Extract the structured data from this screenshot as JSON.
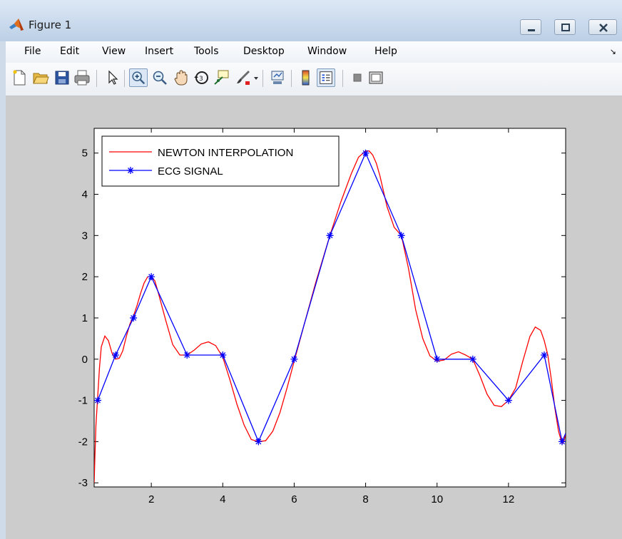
{
  "window": {
    "title": "Figure 1"
  },
  "menu": {
    "items": [
      "File",
      "Edit",
      "View",
      "Insert",
      "Tools",
      "Desktop",
      "Window",
      "Help"
    ]
  },
  "toolbar": {
    "buttons": [
      "new-figure",
      "open-file",
      "save-figure",
      "print-figure",
      "edit-plot",
      "zoom-in",
      "zoom-out",
      "pan",
      "rotate-3d",
      "data-cursor",
      "brush",
      "link-plot",
      "insert-colorbar",
      "insert-legend",
      "hide-plot-tools",
      "show-plot-tools"
    ]
  },
  "colors": {
    "interpolation": "#ff0000",
    "signal": "#0000ff",
    "figure_bg": "#cccccc"
  },
  "chart_data": {
    "type": "line",
    "xlim": [
      0.4,
      13.6
    ],
    "ylim": [
      -3.1,
      5.6
    ],
    "xticks": [
      2,
      4,
      6,
      8,
      10,
      12
    ],
    "yticks": [
      -3,
      -2,
      -1,
      0,
      1,
      2,
      3,
      4,
      5
    ],
    "grid": false,
    "legend_position": "top-left",
    "series": [
      {
        "name": "NEWTON INTERPOLATION",
        "style": "line",
        "x": [
          0.4,
          0.42,
          0.45,
          0.5,
          0.55,
          0.6,
          0.7,
          0.8,
          0.9,
          1.0,
          1.1,
          1.2,
          1.3,
          1.4,
          1.5,
          1.6,
          1.7,
          1.8,
          1.9,
          2.0,
          2.1,
          2.2,
          2.4,
          2.6,
          2.8,
          3.0,
          3.2,
          3.4,
          3.6,
          3.8,
          4.0,
          4.2,
          4.4,
          4.6,
          4.8,
          5.0,
          5.2,
          5.4,
          5.6,
          5.8,
          6.0,
          6.3,
          6.6,
          7.0,
          7.3,
          7.6,
          7.8,
          8.0,
          8.1,
          8.2,
          8.3,
          8.4,
          8.6,
          8.8,
          9.0,
          9.2,
          9.4,
          9.6,
          9.8,
          10.0,
          10.2,
          10.4,
          10.6,
          10.8,
          11.0,
          11.2,
          11.4,
          11.6,
          11.8,
          12.0,
          12.2,
          12.4,
          12.6,
          12.75,
          12.9,
          13.0,
          13.1,
          13.2,
          13.3,
          13.4,
          13.5,
          13.55,
          13.6
        ],
        "y": [
          -3.0,
          -2.4,
          -1.6,
          -0.9,
          -0.2,
          0.3,
          0.56,
          0.45,
          0.15,
          0.0,
          0.02,
          0.2,
          0.55,
          0.85,
          1.05,
          1.3,
          1.6,
          1.85,
          2.0,
          2.0,
          1.9,
          1.6,
          0.95,
          0.35,
          0.1,
          0.1,
          0.22,
          0.37,
          0.42,
          0.33,
          0.05,
          -0.5,
          -1.1,
          -1.6,
          -1.95,
          -2.0,
          -1.98,
          -1.75,
          -1.3,
          -0.7,
          -0.05,
          0.9,
          1.85,
          3.0,
          3.8,
          4.5,
          4.9,
          5.05,
          5.05,
          4.95,
          4.75,
          4.45,
          3.7,
          3.2,
          3.0,
          2.2,
          1.2,
          0.5,
          0.08,
          -0.05,
          -0.02,
          0.12,
          0.18,
          0.1,
          0.0,
          -0.4,
          -0.85,
          -1.12,
          -1.15,
          -1.0,
          -0.7,
          -0.05,
          0.55,
          0.78,
          0.7,
          0.45,
          0.1,
          -0.5,
          -1.2,
          -1.75,
          -2.05,
          -2.0,
          -1.8
        ]
      },
      {
        "name": "ECG SIGNAL",
        "style": "line-marker",
        "x": [
          0.5,
          1.0,
          1.5,
          2.0,
          3.0,
          4.0,
          5.0,
          6.0,
          7.0,
          8.0,
          9.0,
          10.0,
          11.0,
          12.0,
          13.0,
          13.5,
          13.6
        ],
        "y": [
          -1.0,
          0.1,
          1.0,
          2.0,
          0.1,
          0.1,
          -2.0,
          0.0,
          3.0,
          5.0,
          3.0,
          0.0,
          0.0,
          -1.0,
          0.1,
          -2.0,
          -1.8
        ]
      }
    ]
  }
}
